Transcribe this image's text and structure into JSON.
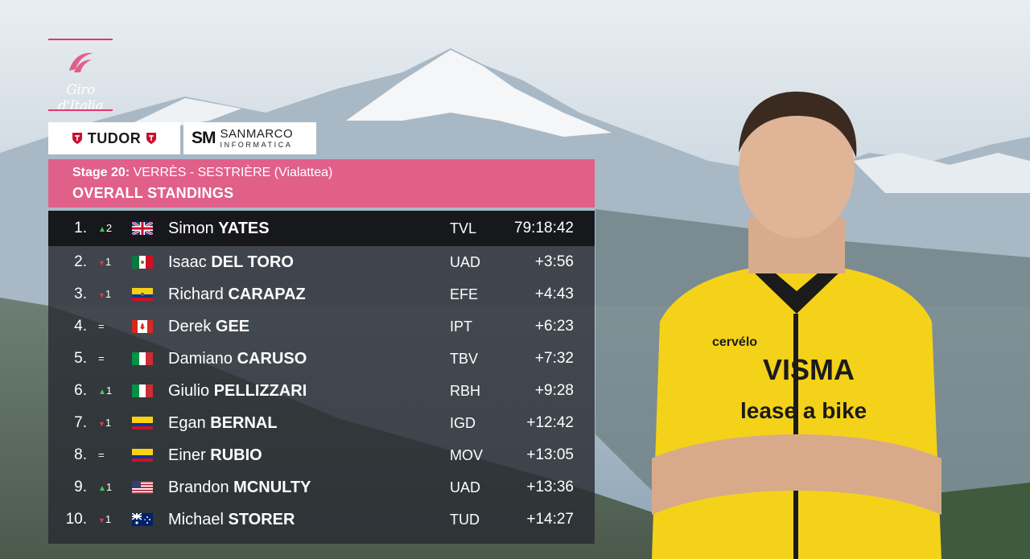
{
  "brand": {
    "logo_text": "Giro d'Italia",
    "color": "#e0608a"
  },
  "sponsors": [
    {
      "name": "TUDOR"
    },
    {
      "mark": "SM",
      "name": "SANMARCO",
      "sub": "INFORMATICA"
    }
  ],
  "header": {
    "stage_label": "Stage 20:",
    "stage_route": "VERRÈS - SESTRIÈRE (Vialattea)",
    "title": "OVERALL STANDINGS"
  },
  "rider_photo": {
    "jersey_text": [
      "cervélo",
      "VISMA",
      "lease a bike"
    ]
  },
  "standings": [
    {
      "pos": "1.",
      "change": "2",
      "dir": "up",
      "flag": "gb-flag-icon",
      "first": "Simon",
      "last": "YATES",
      "team": "TVL",
      "time": "79:18:42"
    },
    {
      "pos": "2.",
      "change": "1",
      "dir": "down",
      "flag": "mx-flag-icon",
      "first": "Isaac",
      "last": "DEL TORO",
      "team": "UAD",
      "time": "+3:56"
    },
    {
      "pos": "3.",
      "change": "1",
      "dir": "down",
      "flag": "ec-flag-icon",
      "first": "Richard",
      "last": "CARAPAZ",
      "team": "EFE",
      "time": "+4:43"
    },
    {
      "pos": "4.",
      "change": "=",
      "dir": "same",
      "flag": "ca-flag-icon",
      "first": "Derek",
      "last": "GEE",
      "team": "IPT",
      "time": "+6:23"
    },
    {
      "pos": "5.",
      "change": "=",
      "dir": "same",
      "flag": "it-flag-icon",
      "first": "Damiano",
      "last": "CARUSO",
      "team": "TBV",
      "time": "+7:32"
    },
    {
      "pos": "6.",
      "change": "1",
      "dir": "up",
      "flag": "it-flag-icon",
      "first": "Giulio",
      "last": "PELLIZZARI",
      "team": "RBH",
      "time": "+9:28"
    },
    {
      "pos": "7.",
      "change": "1",
      "dir": "down",
      "flag": "co-flag-icon",
      "first": "Egan",
      "last": "BERNAL",
      "team": "IGD",
      "time": "+12:42"
    },
    {
      "pos": "8.",
      "change": "=",
      "dir": "same",
      "flag": "co-flag-icon",
      "first": "Einer",
      "last": "RUBIO",
      "team": "MOV",
      "time": "+13:05"
    },
    {
      "pos": "9.",
      "change": "1",
      "dir": "up",
      "flag": "us-flag-icon",
      "first": "Brandon",
      "last": "MCNULTY",
      "team": "UAD",
      "time": "+13:36"
    },
    {
      "pos": "10.",
      "change": "1",
      "dir": "down",
      "flag": "au-flag-icon",
      "first": "Michael",
      "last": "STORER",
      "team": "TUD",
      "time": "+14:27"
    }
  ]
}
